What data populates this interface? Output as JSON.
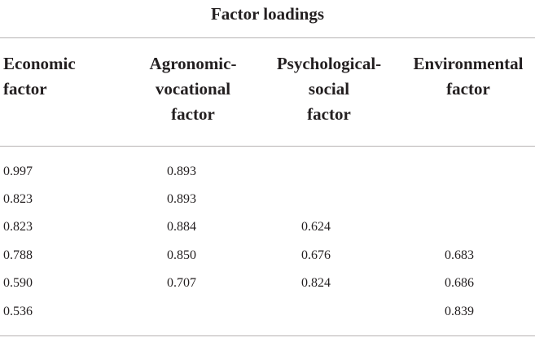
{
  "table": {
    "title": "Factor loadings",
    "headers": [
      "Economic\nfactor",
      "Agronomic-\nvocational\nfactor",
      "Psychological-\nsocial\nfactor",
      "Environmental\nfactor"
    ],
    "rows": [
      [
        "0.997",
        "0.893",
        "",
        ""
      ],
      [
        "0.823",
        "0.893",
        "",
        ""
      ],
      [
        "0.823",
        "0.884",
        "0.624",
        ""
      ],
      [
        "0.788",
        "0.850",
        "0.676",
        "0.683"
      ],
      [
        "0.590",
        "0.707",
        "0.824",
        "0.686"
      ],
      [
        "0.536",
        "",
        "",
        "0.839"
      ]
    ]
  }
}
